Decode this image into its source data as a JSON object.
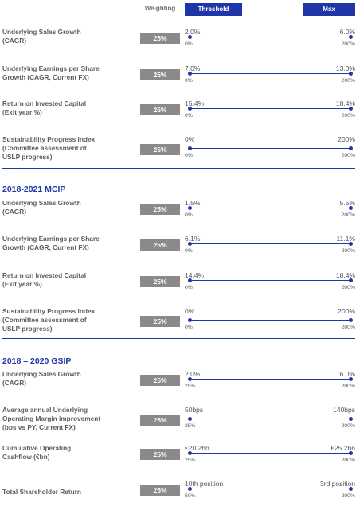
{
  "header": {
    "weighting": "Weighting",
    "threshold": "Threshold",
    "max": "Max"
  },
  "sections": [
    {
      "title": "",
      "rows": [
        {
          "label": [
            "Underlying Sales Growth",
            "(CAGR)"
          ],
          "weight": "25%",
          "threshold": "2.0%",
          "max": "6.0%",
          "pct_low": "0%",
          "pct_high": "200%"
        },
        {
          "label": [
            "Underlying Earnings per Share",
            "Growth (CAGR, Current FX)"
          ],
          "weight": "25%",
          "threshold": "7.0%",
          "max": "13.0%",
          "pct_low": "0%",
          "pct_high": "200%"
        },
        {
          "label": [
            "Return on Invested Capital",
            "(Exit year %)"
          ],
          "weight": "25%",
          "threshold": "15.4%",
          "max": "18.4%",
          "pct_low": "0%",
          "pct_high": "200%"
        },
        {
          "label": [
            "Sustainability Progress Index",
            "(Committee assessment of",
            "USLP progress)"
          ],
          "weight": "25%",
          "threshold": "0%",
          "max": "200%",
          "pct_low": "0%",
          "pct_high": "200%"
        }
      ]
    },
    {
      "title": "2018-2021 MCIP",
      "rows": [
        {
          "label": [
            "Underlying Sales Growth",
            "(CAGR)"
          ],
          "weight": "25%",
          "threshold": "1.5%",
          "max": "5.5%",
          "pct_low": "0%",
          "pct_high": "200%"
        },
        {
          "label": [
            "Underlying Earnings per Share",
            "Growth (CAGR, Current FX)"
          ],
          "weight": "25%",
          "threshold": "6.1%",
          "max": "11.1%",
          "pct_low": "0%",
          "pct_high": "200%"
        },
        {
          "label": [
            "Return on Invested Capital",
            "(Exit year %)"
          ],
          "weight": "25%",
          "threshold": "14.4%",
          "max": "18.4%",
          "pct_low": "0%",
          "pct_high": "200%"
        },
        {
          "label": [
            "Sustainability Progress Index",
            "(Committee assessment of",
            "USLP progress)"
          ],
          "weight": "25%",
          "threshold": "0%",
          "max": "200%",
          "pct_low": "0%",
          "pct_high": "200%"
        }
      ]
    },
    {
      "title": "2018 – 2020 GSIP",
      "rows": [
        {
          "label": [
            "Underlying Sales Growth",
            "(CAGR)"
          ],
          "weight": "25%",
          "threshold": "2.0%",
          "max": "6.0%",
          "pct_low": "25%",
          "pct_high": "200%"
        },
        {
          "label": [
            "Average annual Underlying",
            "Operating Margin  improvement",
            "(bps vs PY, Current FX)"
          ],
          "weight": "25%",
          "threshold": "50bps",
          "max": "140bps",
          "pct_low": "25%",
          "pct_high": "200%"
        },
        {
          "label": [
            "Cumulative Operating",
            "Cashflow (€bn)"
          ],
          "weight": "25%",
          "threshold": "€20.2bn",
          "max": "€25.2bn",
          "pct_low": "25%",
          "pct_high": "200%"
        },
        {
          "label": [
            "Total Shareholder Return"
          ],
          "weight": "25%",
          "threshold": "10th position",
          "max": "3rd position",
          "pct_low": "50%",
          "pct_high": "200%"
        }
      ]
    }
  ]
}
